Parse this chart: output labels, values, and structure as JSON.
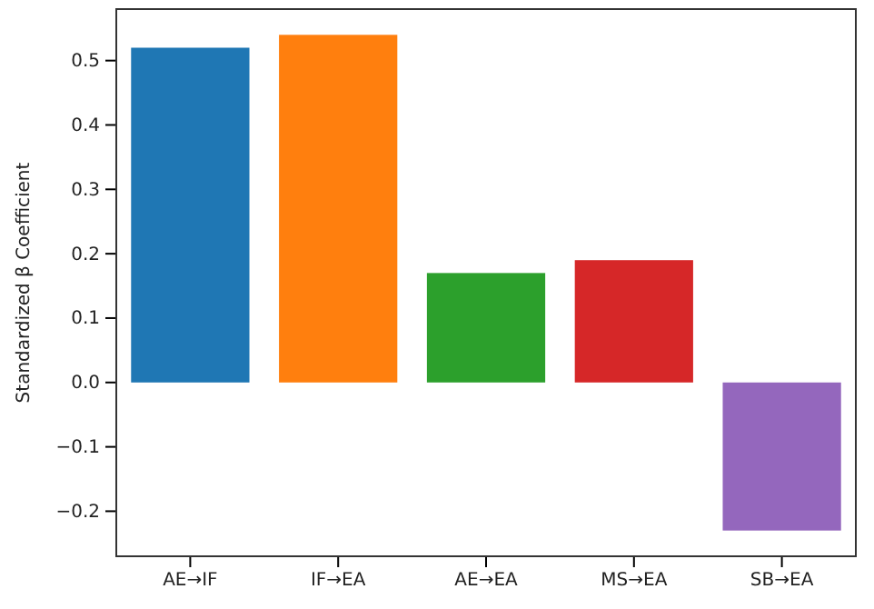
{
  "chart_data": {
    "type": "bar",
    "ylabel": "Standardized β Coefficient",
    "categories": [
      "AE→IF",
      "IF→EA",
      "AE→EA",
      "MS→EA",
      "SB→EA"
    ],
    "values": [
      0.52,
      0.54,
      0.17,
      0.19,
      -0.23
    ],
    "colors": [
      "#1f77b4",
      "#ff7f0e",
      "#2ca02c",
      "#d62728",
      "#9467bd"
    ],
    "ylim": [
      -0.27,
      0.58
    ],
    "yticks": [
      {
        "value": -0.2,
        "label": "−0.2"
      },
      {
        "value": -0.1,
        "label": "−0.1"
      },
      {
        "value": 0,
        "label": "0.0"
      },
      {
        "value": 0.1,
        "label": "0.1"
      },
      {
        "value": 0.2,
        "label": "0.2"
      },
      {
        "value": 0.3,
        "label": "0.3"
      },
      {
        "value": 0.4,
        "label": "0.4"
      },
      {
        "value": 0.5,
        "label": "0.5"
      }
    ]
  }
}
